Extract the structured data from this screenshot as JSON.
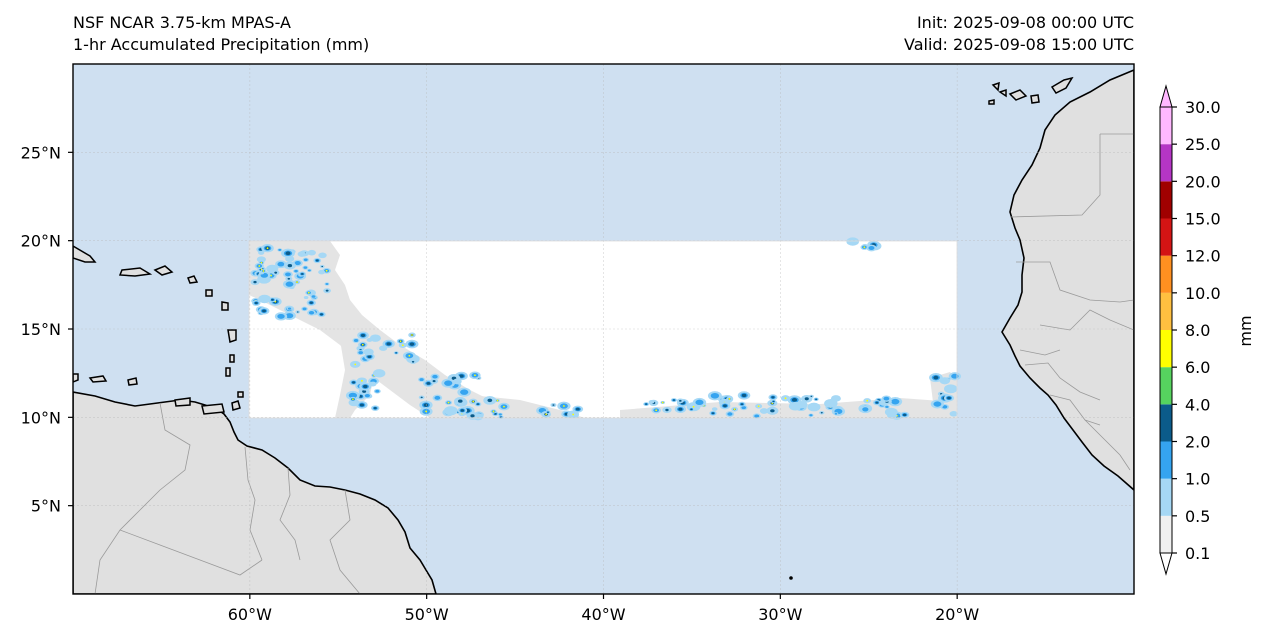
{
  "header": {
    "model_title": "NSF NCAR 3.75-km MPAS-A",
    "field_title": "1-hr Accumulated Precipitation (mm)",
    "init_text": "Init: 2025-09-08 00:00 UTC",
    "valid_text": "Valid: 2025-09-08 15:00 UTC"
  },
  "map": {
    "extent": {
      "lon_min": -70,
      "lon_max": -10,
      "lat_min": 0,
      "lat_max": 30
    },
    "lon_ticks": [
      {
        "lon": -60,
        "label": "60°W"
      },
      {
        "lon": -50,
        "label": "50°W"
      },
      {
        "lon": -40,
        "label": "40°W"
      },
      {
        "lon": -30,
        "label": "30°W"
      },
      {
        "lon": -20,
        "label": "20°W"
      }
    ],
    "lat_ticks": [
      {
        "lat": 5,
        "label": "5°N"
      },
      {
        "lat": 10,
        "label": "10°N"
      },
      {
        "lat": 15,
        "label": "15°N"
      },
      {
        "lat": 20,
        "label": "20°N"
      },
      {
        "lat": 25,
        "label": "25°N"
      }
    ],
    "domain_box": {
      "lon_min": -60,
      "lon_max": -20,
      "lat_min": 10,
      "lat_max": 20
    },
    "colors": {
      "ocean": "#cfe0f1",
      "land": "#e0e0e0",
      "coast": "#000000",
      "border": "#9a9a9a",
      "domain": "#ffffff",
      "light_precip": "#e6e6e6"
    }
  },
  "colorbar": {
    "label": "mm",
    "levels": [
      "0.1",
      "0.5",
      "1.0",
      "2.0",
      "4.0",
      "6.0",
      "8.0",
      "10.0",
      "12.0",
      "15.0",
      "20.0",
      "25.0",
      "30.0"
    ],
    "colors": [
      "#f0f0f0",
      "#a6d8f5",
      "#35a4f0",
      "#0b5b8a",
      "#56d35f",
      "#ffff00",
      "#ffc040",
      "#ff9020",
      "#d41414",
      "#a00000",
      "#b535c5",
      "#ffb8ff"
    ]
  }
}
